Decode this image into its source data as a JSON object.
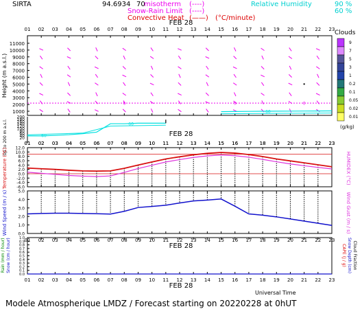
{
  "header": {
    "station": "SIRTA",
    "coords": "94.6934",
    "coords_tail": "70",
    "legend": {
      "isotherm": "misotherm",
      "isotherm_mark": "(----)",
      "snow_rain": "Snow-Rain Limit",
      "snow_rain_mark": "(----)",
      "convective": "Convective Heat",
      "convective_mark": "(——)",
      "convective_unit": "(°C/minute)",
      "rh": "Relative Humidity",
      "rh_90": "90 %",
      "rh_60": "60 %"
    }
  },
  "date_label": "FEB 28",
  "hours": [
    "01",
    "02",
    "03",
    "04",
    "05",
    "06",
    "07",
    "08",
    "09",
    "10",
    "11",
    "12",
    "13",
    "14",
    "15",
    "16",
    "17",
    "18",
    "19",
    "20",
    "21",
    "22",
    "23"
  ],
  "footer": {
    "universal_time": "Universal Time",
    "title": "Modele Atmospherique LMDZ / Forecast starting on 20220228 at 0hUT"
  },
  "colors": {
    "temperature": "#d81010",
    "humidex": "#dd33dd",
    "wind": "#1010cc",
    "rh": "#00e0e0",
    "isotherm": "#ee00ee",
    "rain": "#008800",
    "cape": "#dd0000"
  },
  "clouds_scale": {
    "title": "Clouds",
    "unit": "(g/kg)",
    "levels": [
      "9",
      "7",
      "5",
      "3",
      "1",
      "0.2",
      "0.1",
      "0.05",
      "0.02",
      "0.01"
    ],
    "colors": [
      "#bb33ff",
      "#dd88ff",
      "#555599",
      "#334499",
      "#2244aa",
      "#227777",
      "#33aa44",
      "#88cc33",
      "#ccdd22",
      "#ffff66"
    ]
  },
  "chart_data": [
    {
      "type": "line",
      "title": "",
      "ylabel": "Height (m a.s.l.)",
      "ylabel_low": "Up to 200 m a.s.l.",
      "yticks_upper": [
        "11000",
        "10000",
        "9000",
        "8000",
        "7000",
        "6000",
        "5000",
        "4000",
        "3000",
        "2000",
        "1000"
      ],
      "yticks_lower": [
        "200",
        "180",
        "160",
        "140",
        "120",
        "100",
        "80",
        "60",
        "40",
        "20"
      ],
      "isotherm_0C_height_m": 2200,
      "rh_90_height_lower_m": [
        36,
        36,
        40,
        46,
        55,
        68,
        140,
        140,
        145,
        145,
        145,
        null,
        null,
        null,
        null,
        null,
        null,
        null,
        null,
        null,
        null,
        null,
        null
      ],
      "rh_90_height_upper_m": [
        null,
        null,
        null,
        null,
        null,
        null,
        null,
        null,
        null,
        null,
        null,
        null,
        null,
        null,
        940,
        960,
        980,
        1000,
        1010,
        1020,
        1030,
        1040,
        1050
      ]
    },
    {
      "type": "line",
      "ylabel_left": "Temperature (°C)",
      "ylabel_right": "HUMIDEX (°C)",
      "ylim": [
        -6,
        12
      ],
      "yticks": [
        "12.0",
        "10.0",
        "8.0",
        "6.0",
        "4.0",
        "2.0",
        "0.0",
        "-2.0",
        "-4.0",
        "-6.0"
      ],
      "series": [
        {
          "name": "Temperature",
          "values": [
            2.6,
            2.3,
            2.0,
            1.6,
            1.3,
            1.2,
            1.3,
            2.5,
            4.0,
            5.4,
            6.8,
            7.8,
            8.7,
            9.4,
            9.8,
            9.5,
            8.8,
            7.9,
            6.8,
            5.9,
            5.0,
            4.1,
            3.2
          ]
        },
        {
          "name": "Humidex",
          "values": [
            0.7,
            0.2,
            -0.3,
            -0.8,
            -1.1,
            -1.3,
            -1.0,
            0.6,
            2.4,
            3.9,
            5.4,
            6.5,
            7.5,
            8.2,
            8.6,
            8.3,
            7.6,
            6.6,
            5.5,
            4.5,
            3.7,
            2.9,
            2.2
          ]
        }
      ],
      "reference_lines": [
        9.0,
        0.0
      ]
    },
    {
      "type": "line",
      "ylabel_left": "Wind Speed (m / s)",
      "ylabel_right": "Wind Gust (m / s)",
      "ylim": [
        0,
        5
      ],
      "yticks": [
        "5.0",
        "4.0",
        "3.0",
        "2.0",
        "1.0",
        "0.0"
      ],
      "series": [
        {
          "name": "Wind Speed",
          "values": [
            2.3,
            2.35,
            2.38,
            2.38,
            2.35,
            2.32,
            2.28,
            2.6,
            3.05,
            3.18,
            3.32,
            3.58,
            3.82,
            3.92,
            4.05,
            3.2,
            2.3,
            2.15,
            1.95,
            1.7,
            1.45,
            1.2,
            0.95
          ]
        }
      ]
    },
    {
      "type": "line",
      "ylabel_left": "Rain (mm / hour)",
      "ylabel_left2": "Snow (cm / hour)",
      "ylabel_right": "CAPE (J / g)",
      "ylabel_right2": "Snow Depth (cm)",
      "ylabel_right3": "Cloud Fraction",
      "ylim": [
        0,
        1
      ],
      "yticks": [
        "1.0",
        "0.9",
        "0.8",
        "0.7",
        "0.6",
        "0.5",
        "0.4",
        "0.3",
        "0.2",
        "0.1",
        "0.0"
      ],
      "series": [
        {
          "name": "Rain",
          "values": [
            0,
            0,
            0,
            0,
            0,
            0,
            0,
            0,
            0,
            0,
            0,
            0,
            0,
            0,
            0,
            0,
            0,
            0,
            0,
            0,
            0,
            0,
            0
          ]
        },
        {
          "name": "CAPE",
          "values": [
            0,
            0,
            0,
            0,
            0,
            0,
            0,
            0,
            0,
            0,
            0,
            0,
            0,
            0,
            0,
            0,
            0,
            0,
            0,
            0,
            0,
            0,
            0
          ]
        }
      ]
    }
  ]
}
